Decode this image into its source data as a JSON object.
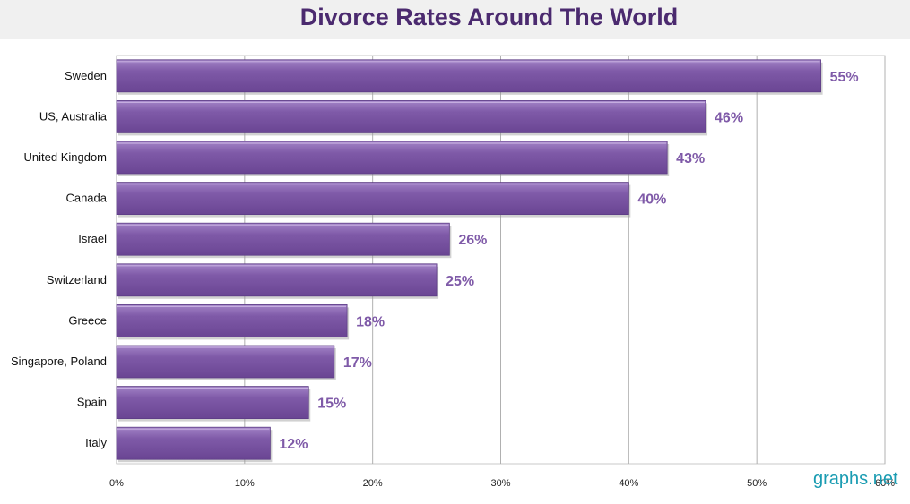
{
  "chart_data": {
    "type": "bar",
    "orientation": "horizontal",
    "title": "Divorce Rates Around The World",
    "categories": [
      "Sweden",
      "US, Australia",
      "United Kingdom",
      "Canada",
      "Israel",
      "Switzerland",
      "Greece",
      "Singapore, Poland",
      "Spain",
      "Italy"
    ],
    "values": [
      55,
      46,
      43,
      40,
      26,
      25,
      18,
      17,
      15,
      12
    ],
    "data_labels": [
      "55%",
      "46%",
      "43%",
      "40%",
      "26%",
      "25%",
      "18%",
      "17%",
      "15%",
      "12%"
    ],
    "xlim": [
      0,
      60
    ],
    "x_ticks": [
      "0%",
      "10%",
      "20%",
      "30%",
      "40%",
      "50%",
      "60%"
    ],
    "grid": true,
    "bar_color": "#7f5aa8",
    "label_color": "#7f5aa8"
  },
  "watermark": "graphs.net"
}
